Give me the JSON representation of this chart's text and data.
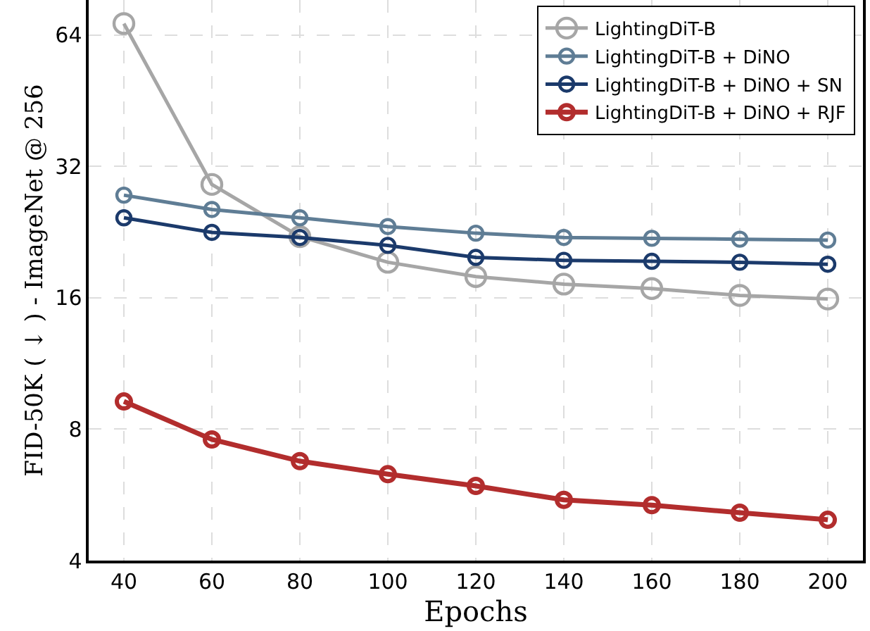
{
  "chart_data": {
    "type": "line",
    "xlabel": "Epochs",
    "ylabel": "FID-50K ( ↓ ) - ImageNet @ 256",
    "x": [
      40,
      60,
      80,
      100,
      120,
      140,
      160,
      180,
      200
    ],
    "series": [
      {
        "name": "LightingDiT-B",
        "color": "#a6a6a6",
        "values": [
          68,
          29.1,
          22.1,
          19.3,
          17.9,
          17.2,
          16.8,
          16.2,
          15.9
        ]
      },
      {
        "name": "LightingDiT-B + DiNO",
        "color": "#5f7d95",
        "values": [
          27.5,
          25.5,
          24.4,
          23.3,
          22.5,
          22.0,
          21.9,
          21.8,
          21.7
        ]
      },
      {
        "name": "LightingDiT-B + DiNO + SN",
        "color": "#1b3a6b",
        "values": [
          24.4,
          22.6,
          22.0,
          21.1,
          19.8,
          19.5,
          19.4,
          19.3,
          19.1
        ]
      },
      {
        "name": "LightingDiT-B + DiNO + RJF",
        "color": "#b22d2d",
        "values": [
          9.26,
          7.58,
          6.76,
          6.31,
          5.93,
          5.51,
          5.36,
          5.15,
          4.96
        ]
      }
    ],
    "xlim": [
      32,
      208
    ],
    "xticks": [
      40,
      60,
      80,
      100,
      120,
      140,
      160,
      180,
      200
    ],
    "ylim": [
      4,
      77
    ],
    "yticks": [
      4,
      8,
      16,
      32,
      64
    ],
    "log": "y",
    "grid": true,
    "legend": "top right",
    "marker": "circle",
    "line_style": "solid"
  }
}
